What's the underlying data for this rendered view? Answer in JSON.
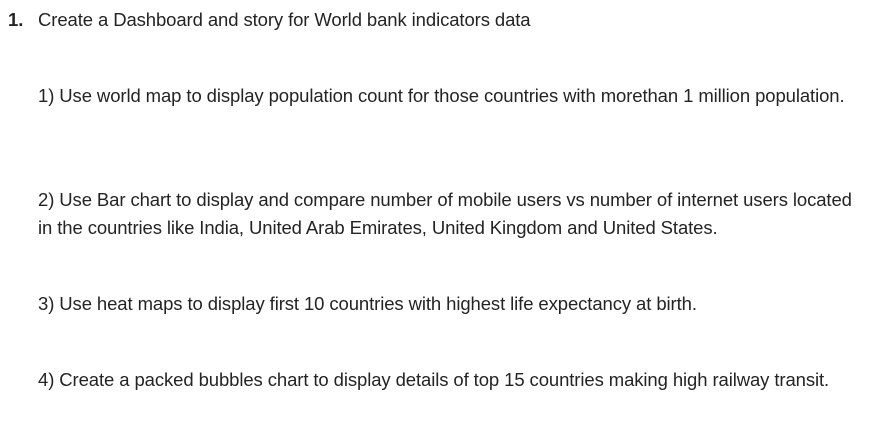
{
  "list": {
    "number": "1.",
    "heading": "Create a Dashboard and story for World bank indicators data"
  },
  "paragraphs": [
    "1) Use world map to display population count for those countries with morethan 1 million population.",
    "2) Use Bar chart to display and compare number of mobile users vs number of internet users located in the countries like India, United Arab Emirates, United Kingdom and United States.",
    "3) Use heat maps to display first 10 countries with highest life expectancy at birth.",
    "4) Create a packed bubbles chart to display details of top 15 countries making high railway transit."
  ]
}
